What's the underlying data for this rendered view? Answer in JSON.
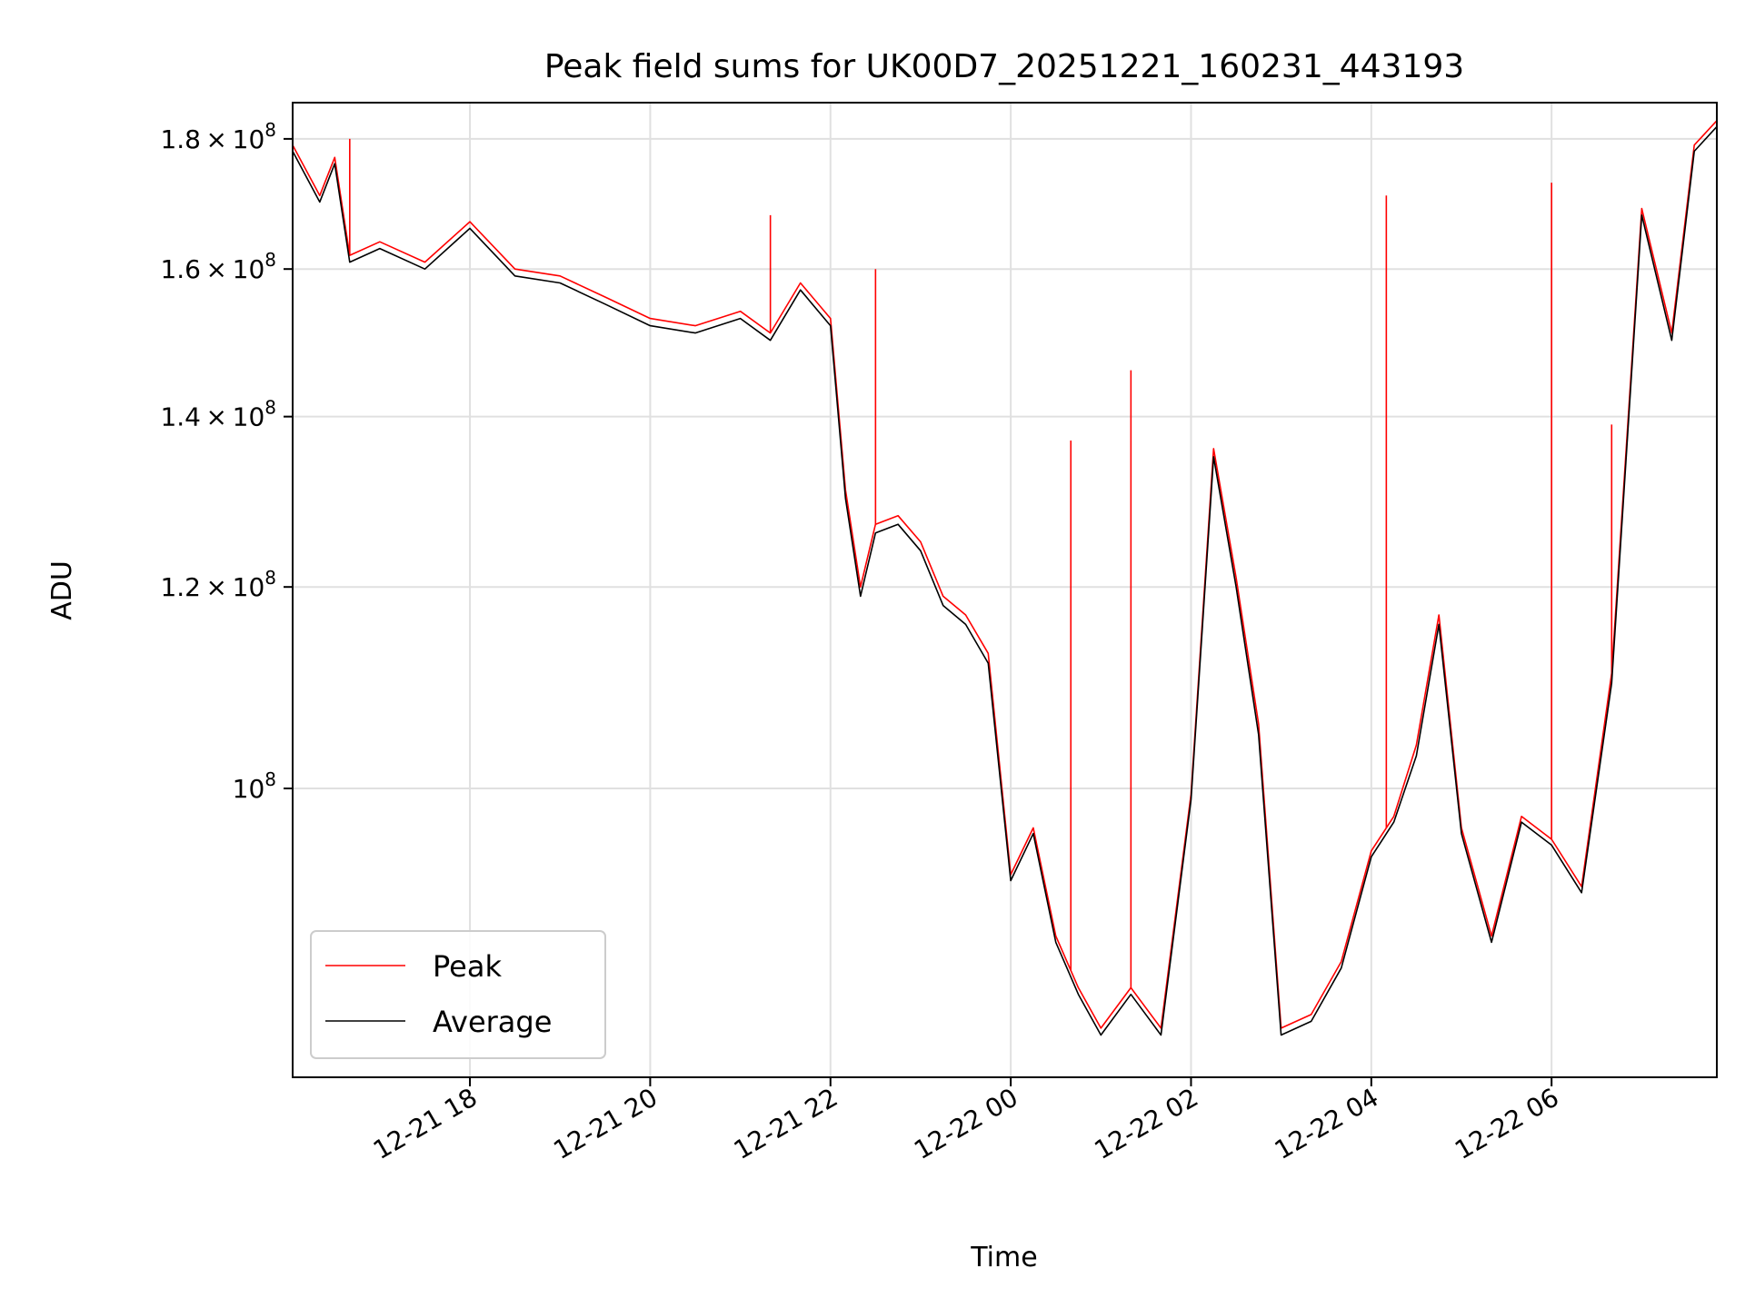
{
  "chart_data": {
    "type": "line",
    "title": "Peak field sums for UK00D7_20251221_160231_443193",
    "xlabel": "Time",
    "ylabel": "ADU",
    "x_range": [
      "2025-12-21 16:02",
      "2025-12-22 07:50"
    ],
    "ylim": [
      77000000,
      186000000
    ],
    "y_scale": "log",
    "grid": true,
    "legend_position": "lower-left",
    "x_ticks": [
      "12-21 18",
      "12-21 20",
      "12-21 22",
      "12-22 00",
      "12-22 02",
      "12-22 04",
      "12-22 06"
    ],
    "y_ticks": [
      {
        "value": 180000000,
        "mantissa": "1.8",
        "base": "10",
        "exp": "8"
      },
      {
        "value": 160000000,
        "mantissa": "1.6",
        "base": "10",
        "exp": "8"
      },
      {
        "value": 140000000,
        "mantissa": "1.4",
        "base": "10",
        "exp": "8"
      },
      {
        "value": 120000000,
        "mantissa": "1.2",
        "base": "10",
        "exp": "8"
      },
      {
        "value": 100000000,
        "mantissa": "",
        "base": "10",
        "exp": "8"
      }
    ],
    "series": [
      {
        "name": "Average",
        "color": "#000000",
        "x": [
          "2025-12-21 16:02",
          "2025-12-21 16:20",
          "2025-12-21 16:30",
          "2025-12-21 16:40",
          "2025-12-21 17:00",
          "2025-12-21 17:30",
          "2025-12-21 18:00",
          "2025-12-21 18:30",
          "2025-12-21 19:00",
          "2025-12-21 19:30",
          "2025-12-21 20:00",
          "2025-12-21 20:30",
          "2025-12-21 21:00",
          "2025-12-21 21:20",
          "2025-12-21 21:40",
          "2025-12-21 22:00",
          "2025-12-21 22:10",
          "2025-12-21 22:20",
          "2025-12-21 22:30",
          "2025-12-21 22:45",
          "2025-12-21 23:00",
          "2025-12-21 23:15",
          "2025-12-21 23:30",
          "2025-12-21 23:45",
          "2025-12-22 00:00",
          "2025-12-22 00:15",
          "2025-12-22 00:30",
          "2025-12-22 00:45",
          "2025-12-22 01:00",
          "2025-12-22 01:20",
          "2025-12-22 01:40",
          "2025-12-22 02:00",
          "2025-12-22 02:15",
          "2025-12-22 02:30",
          "2025-12-22 02:45",
          "2025-12-22 03:00",
          "2025-12-22 03:20",
          "2025-12-22 03:40",
          "2025-12-22 04:00",
          "2025-12-22 04:15",
          "2025-12-22 04:30",
          "2025-12-22 04:45",
          "2025-12-22 05:00",
          "2025-12-22 05:20",
          "2025-12-22 05:40",
          "2025-12-22 06:00",
          "2025-12-22 06:20",
          "2025-12-22 06:40",
          "2025-12-22 07:00",
          "2025-12-22 07:20",
          "2025-12-22 07:35",
          "2025-12-22 07:50"
        ],
        "values": [
          178000000,
          170000000,
          176000000,
          161000000,
          163000000,
          160000000,
          166000000,
          159000000,
          158000000,
          155000000,
          152000000,
          151000000,
          153000000,
          150000000,
          157000000,
          152000000,
          130000000,
          119000000,
          126000000,
          127000000,
          124000000,
          118000000,
          116000000,
          112000000,
          92000000,
          96000000,
          87000000,
          83000000,
          80000000,
          83000000,
          80000000,
          99000000,
          135000000,
          120000000,
          105000000,
          80000000,
          81000000,
          85000000,
          94000000,
          97000000,
          103000000,
          116000000,
          96000000,
          87000000,
          97000000,
          95000000,
          91000000,
          110000000,
          168000000,
          150000000,
          178000000,
          182000000
        ]
      },
      {
        "name": "Peak",
        "color": "#ff0000",
        "x": [
          "2025-12-21 16:02",
          "2025-12-21 16:20",
          "2025-12-21 16:30",
          "2025-12-21 16:40",
          "2025-12-21 17:00",
          "2025-12-21 17:30",
          "2025-12-21 18:00",
          "2025-12-21 18:30",
          "2025-12-21 19:00",
          "2025-12-21 19:30",
          "2025-12-21 20:00",
          "2025-12-21 20:30",
          "2025-12-21 21:00",
          "2025-12-21 21:20",
          "2025-12-21 21:40",
          "2025-12-21 22:00",
          "2025-12-21 22:10",
          "2025-12-21 22:20",
          "2025-12-21 22:30",
          "2025-12-21 22:45",
          "2025-12-21 23:00",
          "2025-12-21 23:15",
          "2025-12-21 23:30",
          "2025-12-21 23:45",
          "2025-12-22 00:00",
          "2025-12-22 00:15",
          "2025-12-22 00:30",
          "2025-12-22 00:45",
          "2025-12-22 01:00",
          "2025-12-22 01:20",
          "2025-12-22 01:40",
          "2025-12-22 02:00",
          "2025-12-22 02:15",
          "2025-12-22 02:30",
          "2025-12-22 02:45",
          "2025-12-22 03:00",
          "2025-12-22 03:20",
          "2025-12-22 03:40",
          "2025-12-22 04:00",
          "2025-12-22 04:15",
          "2025-12-22 04:30",
          "2025-12-22 04:45",
          "2025-12-22 05:00",
          "2025-12-22 05:20",
          "2025-12-22 05:40",
          "2025-12-22 06:00",
          "2025-12-22 06:20",
          "2025-12-22 06:40",
          "2025-12-22 07:00",
          "2025-12-22 07:20",
          "2025-12-22 07:35",
          "2025-12-22 07:50"
        ],
        "values": [
          179000000,
          171000000,
          177000000,
          162000000,
          164000000,
          161000000,
          167000000,
          160000000,
          159000000,
          156000000,
          153000000,
          152000000,
          154000000,
          151000000,
          158000000,
          153000000,
          131000000,
          120000000,
          127000000,
          128000000,
          125000000,
          119000000,
          117000000,
          113000000,
          92500000,
          96500000,
          87500000,
          83500000,
          80500000,
          83500000,
          80500000,
          99500000,
          136000000,
          121000000,
          106000000,
          80500000,
          81500000,
          85500000,
          94500000,
          97500000,
          104000000,
          117000000,
          96500000,
          87500000,
          97500000,
          95500000,
          91500000,
          111000000,
          169000000,
          151000000,
          179000000,
          183000000
        ],
        "spikes": [
          {
            "x": "2025-12-21 16:40",
            "y": 180000000
          },
          {
            "x": "2025-12-21 21:20",
            "y": 168000000
          },
          {
            "x": "2025-12-21 22:30",
            "y": 160000000
          },
          {
            "x": "2025-12-22 00:40",
            "y": 137000000
          },
          {
            "x": "2025-12-22 01:20",
            "y": 146000000
          },
          {
            "x": "2025-12-22 04:10",
            "y": 171000000
          },
          {
            "x": "2025-12-22 06:00",
            "y": 173000000
          },
          {
            "x": "2025-12-22 06:40",
            "y": 139000000
          }
        ]
      }
    ]
  }
}
